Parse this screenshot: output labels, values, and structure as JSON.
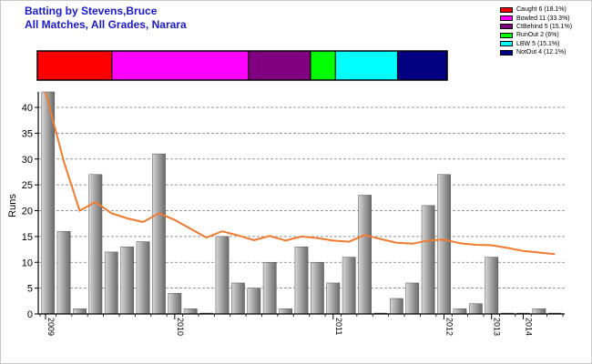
{
  "header": {
    "title": "Batting by Stevens,Bruce",
    "subtitle": "All Matches, All Grades, Narara"
  },
  "legend": [
    {
      "label": "Caught 6 (18.1%)",
      "color": "#ff0000"
    },
    {
      "label": "Bowled 11 (33.3%)",
      "color": "#ff00ff"
    },
    {
      "label": "CtBehind 5 (15.1%)",
      "color": "#800080"
    },
    {
      "label": "RunOut 2 (6%)",
      "color": "#00ff00"
    },
    {
      "label": "LBW 5 (15.1%)",
      "color": "#00ffff"
    },
    {
      "label": "NotOut 4 (12.1%)",
      "color": "#000080"
    }
  ],
  "chart_data": {
    "type": "bar",
    "ylabel": "Runs",
    "ylim": [
      0,
      43
    ],
    "yticks": [
      0,
      5,
      10,
      15,
      20,
      25,
      30,
      35,
      40
    ],
    "grid": true,
    "bar_color": "#a0a0a0",
    "line_color": "#f07a30",
    "year_ticks": [
      {
        "label": "2009",
        "index": 0
      },
      {
        "label": "2010",
        "index": 8
      },
      {
        "label": "2011",
        "index": 18
      },
      {
        "label": "2012",
        "index": 25
      },
      {
        "label": "2013",
        "index": 28
      },
      {
        "label": "2014",
        "index": 30
      }
    ],
    "series": [
      {
        "values": [
          43,
          16,
          1,
          27,
          12,
          13,
          14,
          31,
          4,
          1,
          0,
          15,
          6,
          5,
          10,
          1,
          13,
          10,
          6,
          11,
          23,
          0,
          3,
          6,
          21,
          27,
          1,
          2,
          11,
          0,
          0,
          1,
          0
        ]
      },
      {
        "values": [
          43,
          29.5,
          20,
          21.7,
          19.5,
          18.5,
          17.8,
          19.5,
          18.2,
          16.5,
          14.8,
          16,
          15.2,
          14.3,
          15.1,
          14.2,
          15,
          14.7,
          14.2,
          14,
          15.3,
          14.5,
          13.8,
          13.6,
          14.2,
          14.4,
          13.7,
          13.4,
          13.3,
          12.8,
          12.2,
          11.9,
          11.6
        ]
      }
    ],
    "dismissal_breakdown": [
      {
        "type": "Caught",
        "count": 6,
        "percent": 18.1
      },
      {
        "type": "Bowled",
        "count": 11,
        "percent": 33.3
      },
      {
        "type": "CtBehind",
        "count": 5,
        "percent": 15.1
      },
      {
        "type": "RunOut",
        "count": 2,
        "percent": 6
      },
      {
        "type": "LBW",
        "count": 5,
        "percent": 15.1
      },
      {
        "type": "NotOut",
        "count": 4,
        "percent": 12.1
      }
    ]
  }
}
